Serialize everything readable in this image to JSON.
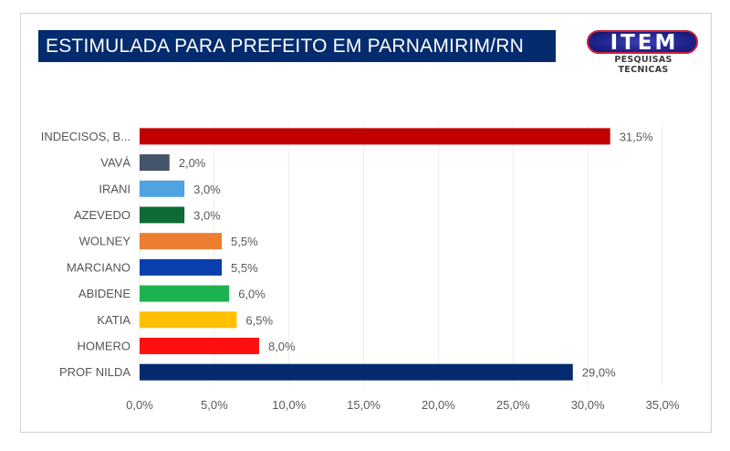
{
  "header": {
    "title": "ESTIMULADA PARA PREFEITO EM PARNAMIRIM/RN",
    "logo_text": "ITEM",
    "logo_subtext": "PESQUISAS TECNICAS"
  },
  "chart_data": {
    "type": "bar",
    "orientation": "horizontal",
    "title": "ESTIMULADA PARA PREFEITO EM PARNAMIRIM/RN",
    "xlabel": "",
    "ylabel": "",
    "xlim": [
      0,
      35
    ],
    "x_ticks": [
      0,
      5,
      10,
      15,
      20,
      25,
      30,
      35
    ],
    "x_tick_labels": [
      "0,0%",
      "5,0%",
      "10,0%",
      "15,0%",
      "20,0%",
      "25,0%",
      "30,0%",
      "35,0%"
    ],
    "grid": true,
    "legend": "none",
    "categories": [
      "INDECISOS, B...",
      "VAVÁ",
      "IRANI",
      "AZEVEDO",
      "WOLNEY",
      "MARCIANO",
      "ABIDENE",
      "KATIA",
      "HOMERO",
      "PROF NILDA"
    ],
    "values": [
      31.5,
      2.0,
      3.0,
      3.0,
      5.5,
      5.5,
      6.0,
      6.5,
      8.0,
      29.0
    ],
    "value_labels": [
      "31,5%",
      "2,0%",
      "3,0%",
      "3,0%",
      "5,5%",
      "5,5%",
      "6,0%",
      "6,5%",
      "8,0%",
      "29,0%"
    ],
    "colors": [
      "#c00000",
      "#44546a",
      "#4ea3e0",
      "#0f6b35",
      "#ed7d31",
      "#0a3fad",
      "#1db34f",
      "#ffc000",
      "#ff1010",
      "#032b6e"
    ]
  }
}
